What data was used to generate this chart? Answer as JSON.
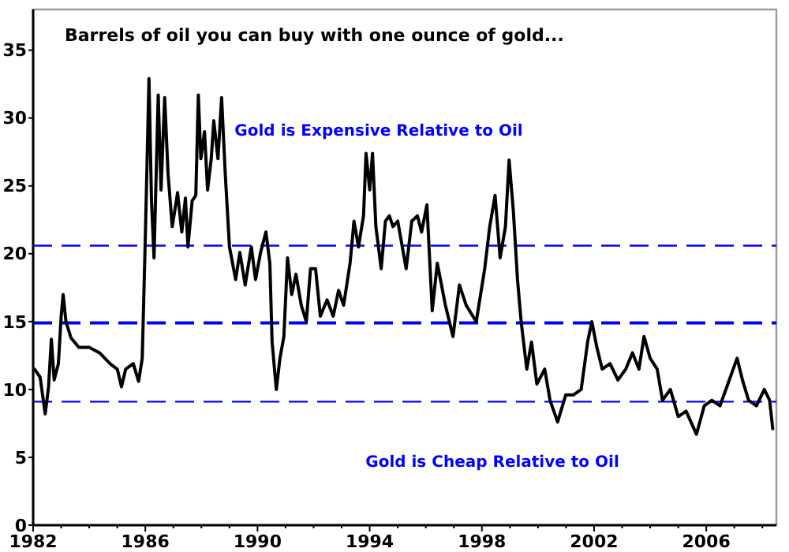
{
  "chart_data": {
    "type": "line",
    "title": "Barrels of oil you can buy with one ounce of gold...",
    "annotations": [
      "Gold is Expensive Relative to Oil",
      "Gold is Cheap Relative to Oil"
    ],
    "x": [
      1982.05,
      1982.25,
      1982.43,
      1982.55,
      1982.65,
      1982.75,
      1982.9,
      1983.0,
      1983.07,
      1983.17,
      1983.35,
      1983.63,
      1984.0,
      1984.37,
      1984.74,
      1985.0,
      1985.15,
      1985.3,
      1985.57,
      1985.76,
      1985.89,
      1986.0,
      1986.13,
      1986.22,
      1986.31,
      1986.46,
      1986.56,
      1986.69,
      1986.81,
      1986.96,
      1987.15,
      1987.3,
      1987.43,
      1987.52,
      1987.67,
      1987.8,
      1987.89,
      1987.98,
      1988.11,
      1988.22,
      1988.35,
      1988.44,
      1988.59,
      1988.72,
      1988.85,
      1989.0,
      1989.22,
      1989.37,
      1989.56,
      1989.78,
      1989.93,
      1990.11,
      1990.3,
      1990.44,
      1990.52,
      1990.67,
      1990.8,
      1990.94,
      1991.07,
      1991.22,
      1991.37,
      1991.56,
      1991.74,
      1991.89,
      1992.07,
      1992.24,
      1992.48,
      1992.7,
      1992.89,
      1993.07,
      1993.3,
      1993.44,
      1993.6,
      1993.78,
      1993.87,
      1994.0,
      1994.1,
      1994.22,
      1994.41,
      1994.56,
      1994.7,
      1994.83,
      1995.0,
      1995.3,
      1995.5,
      1995.7,
      1995.85,
      1996.04,
      1996.23,
      1996.41,
      1996.7,
      1996.97,
      1997.2,
      1997.44,
      1997.8,
      1998.1,
      1998.28,
      1998.47,
      1998.65,
      1998.84,
      1998.97,
      1999.12,
      1999.27,
      1999.4,
      1999.6,
      1999.77,
      1999.96,
      2000.24,
      2000.43,
      2000.7,
      2000.99,
      2001.26,
      2001.54,
      2001.77,
      2001.92,
      2002.1,
      2002.29,
      2002.57,
      2002.85,
      2003.13,
      2003.37,
      2003.6,
      2003.78,
      2004.0,
      2004.25,
      2004.44,
      2004.72,
      2005.0,
      2005.28,
      2005.65,
      2005.93,
      2006.2,
      2006.49,
      2006.77,
      2006.96,
      2007.1,
      2007.29,
      2007.51,
      2007.79,
      2008.07,
      2008.26,
      2008.37
    ],
    "series": [
      {
        "color": "#000000",
        "values": [
          11.5,
          10.9,
          8.2,
          10.2,
          13.7,
          10.7,
          11.9,
          15.4,
          17.0,
          15.0,
          13.8,
          13.1,
          13.1,
          12.7,
          11.9,
          11.5,
          10.2,
          11.5,
          11.9,
          10.6,
          12.3,
          21.2,
          32.9,
          23.9,
          19.7,
          31.7,
          24.7,
          31.5,
          25.9,
          22.0,
          24.5,
          21.6,
          24.1,
          20.5,
          23.9,
          24.3,
          31.7,
          27.0,
          29.0,
          24.7,
          27.0,
          29.8,
          27.0,
          31.5,
          25.9,
          20.5,
          18.1,
          20.1,
          17.7,
          20.5,
          18.1,
          20.1,
          21.6,
          19.3,
          13.5,
          10.0,
          12.3,
          13.9,
          19.7,
          17.0,
          18.5,
          16.2,
          15.0,
          18.9,
          18.9,
          15.4,
          16.6,
          15.4,
          17.3,
          16.2,
          19.3,
          22.4,
          20.5,
          22.8,
          27.4,
          24.7,
          27.4,
          22.0,
          18.9,
          22.4,
          22.8,
          22.0,
          22.4,
          18.9,
          22.4,
          22.8,
          21.6,
          23.6,
          15.8,
          19.3,
          16.2,
          13.9,
          17.7,
          16.2,
          15.0,
          18.9,
          22.0,
          24.3,
          19.7,
          22.0,
          26.9,
          23.2,
          18.1,
          15.0,
          11.5,
          13.5,
          10.4,
          11.5,
          9.2,
          7.6,
          9.6,
          9.6,
          10.0,
          13.5,
          15.0,
          13.1,
          11.5,
          11.9,
          10.7,
          11.5,
          12.7,
          11.5,
          13.9,
          12.3,
          11.5,
          9.2,
          10.0,
          8.0,
          8.4,
          6.7,
          8.8,
          9.2,
          8.8,
          10.4,
          11.5,
          12.3,
          10.7,
          9.2,
          8.8,
          10.0,
          9.2,
          7.1
        ]
      }
    ],
    "xlim": [
      1982,
      2008.5
    ],
    "ylim": [
      0,
      38
    ],
    "xticks": [
      1982,
      {
        "value": 1983,
        "label": null
      },
      {
        "value": 1984,
        "label": null
      },
      {
        "value": 1985,
        "label": null
      },
      1986,
      {
        "value": 1987,
        "label": null
      },
      {
        "value": 1988,
        "label": null
      },
      {
        "value": 1989,
        "label": null
      },
      1990,
      {
        "value": 1991,
        "label": null
      },
      {
        "value": 1992,
        "label": null
      },
      {
        "value": 1993,
        "label": null
      },
      1994,
      {
        "value": 1995,
        "label": null
      },
      {
        "value": 1996,
        "label": null
      },
      {
        "value": 1997,
        "label": null
      },
      1998,
      {
        "value": 1999,
        "label": null
      },
      {
        "value": 2000,
        "label": null
      },
      {
        "value": 2001,
        "label": null
      },
      2002,
      {
        "value": 2003,
        "label": null
      },
      {
        "value": 2004,
        "label": null
      },
      {
        "value": 2005,
        "label": null
      },
      2006,
      {
        "value": 2007,
        "label": null
      },
      {
        "value": 2008,
        "label": null
      }
    ],
    "yticks": [
      0,
      5,
      10,
      15,
      20,
      25,
      30,
      35
    ],
    "ref_lines": [
      {
        "axis": "y",
        "value": 20.6,
        "color": "#0000ff",
        "line_style": "dashed"
      },
      {
        "axis": "y",
        "value": 14.9,
        "color": "#0000ff",
        "line_style": "dashed"
      },
      {
        "axis": "y",
        "value": 9.1,
        "color": "#0000ff",
        "line_style": "dashed"
      }
    ],
    "line_style": "solid",
    "marker": "none",
    "grid": false
  }
}
